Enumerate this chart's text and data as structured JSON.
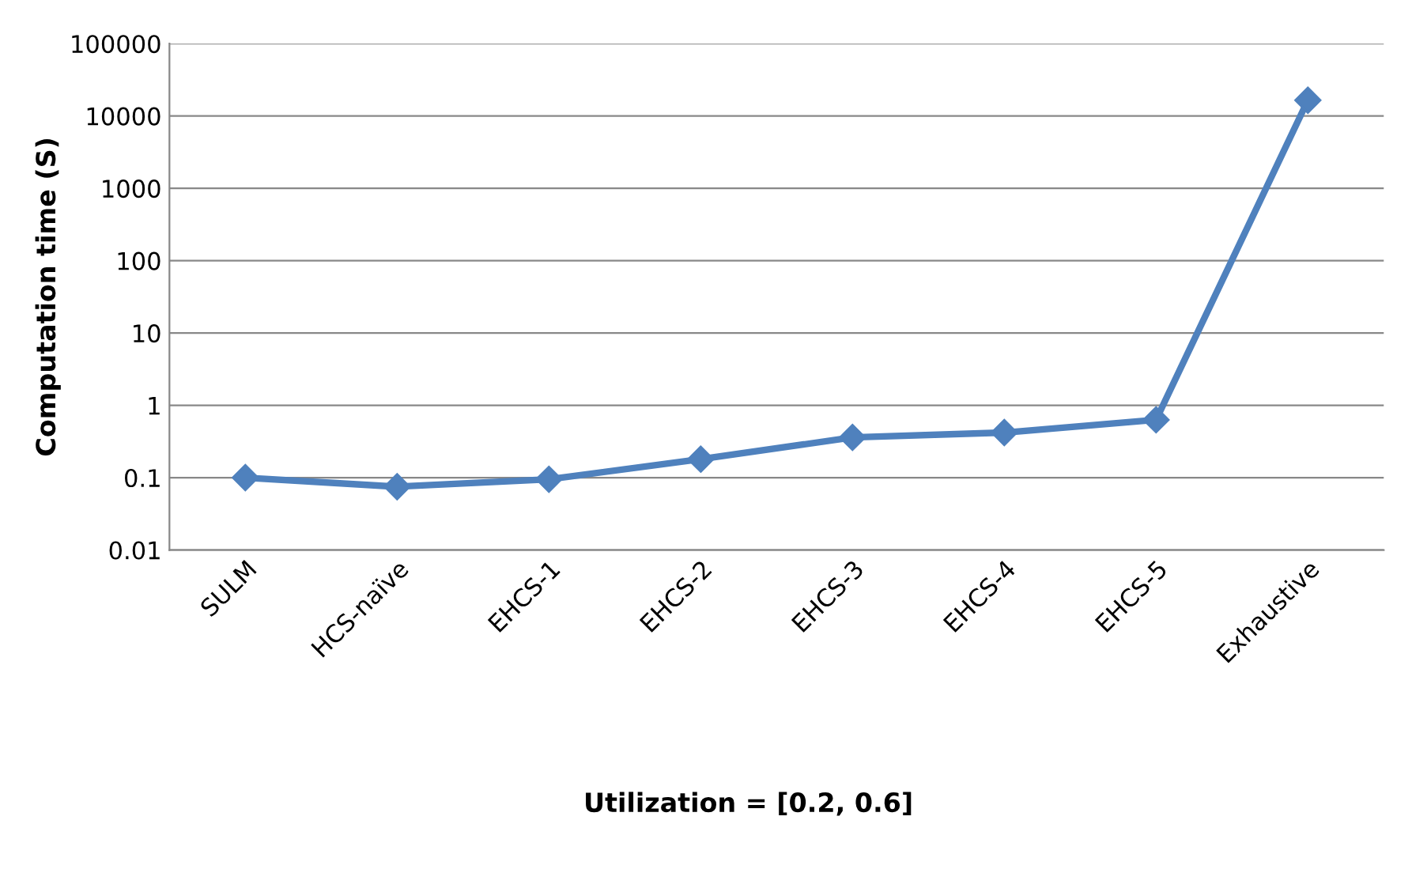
{
  "chart_data": {
    "type": "line",
    "xlabel": "Utilization = [0.2, 0.6]",
    "ylabel": "Computation time (S)",
    "categories": [
      "SULM",
      "HCS-naïve",
      "EHCS-1",
      "EHCS-2",
      "EHCS-3",
      "EHCS-4",
      "EHCS-5",
      "Exhaustive"
    ],
    "series": [
      {
        "color": "#4f81bd",
        "values": [
          0.1,
          0.075,
          0.095,
          0.18,
          0.36,
          0.42,
          0.63,
          16500
        ]
      }
    ],
    "log": "y",
    "ylim": [
      0.01,
      100000
    ],
    "yticks": [
      0.01,
      0.1,
      1,
      10,
      100,
      1000,
      10000,
      100000
    ],
    "grid": "y",
    "marker": "diamond",
    "line_style": "solid",
    "legend": false
  }
}
